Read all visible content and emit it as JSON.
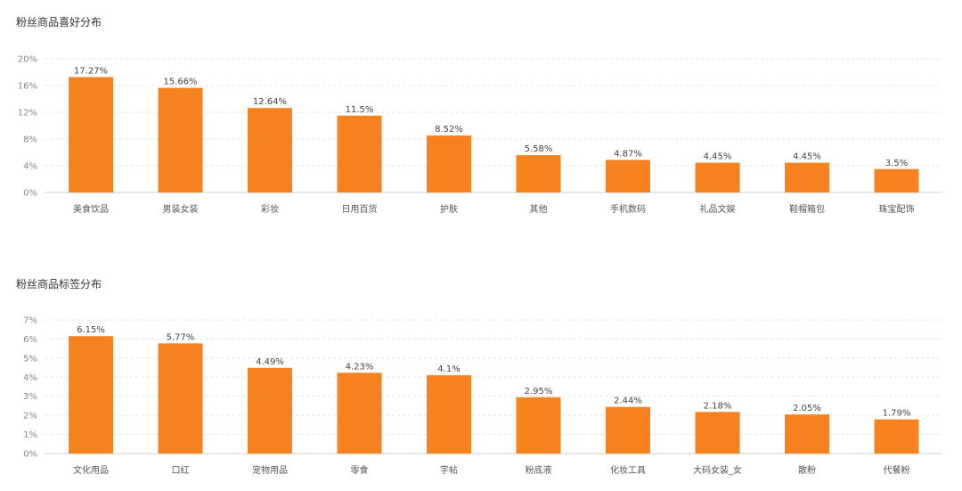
{
  "colors": {
    "bar": "#f5821f"
  },
  "chart_data": [
    {
      "type": "bar",
      "title": "粉丝商品喜好分布",
      "categories": [
        "美食饮品",
        "男装女装",
        "彩妆",
        "日用百货",
        "护肤",
        "其他",
        "手机数码",
        "礼品文娱",
        "鞋帽箱包",
        "珠宝配饰"
      ],
      "values": [
        17.27,
        15.66,
        12.64,
        11.5,
        8.52,
        5.58,
        4.87,
        4.45,
        4.45,
        3.5
      ],
      "value_labels": [
        "17.27%",
        "15.66%",
        "12.64%",
        "11.5%",
        "8.52%",
        "5.58%",
        "4.87%",
        "4.45%",
        "4.45%",
        "3.5%"
      ],
      "ylim": [
        0,
        20
      ],
      "yticks": [
        "0%",
        "4%",
        "8%",
        "12%",
        "16%",
        "20%"
      ],
      "grid": true
    },
    {
      "type": "bar",
      "title": "粉丝商品标签分布",
      "categories": [
        "文化用品",
        "口红",
        "宠物用品",
        "零食",
        "字帖",
        "粉底液",
        "化妆工具",
        "大码女装_女",
        "散粉",
        "代餐粉"
      ],
      "values": [
        6.15,
        5.77,
        4.49,
        4.23,
        4.1,
        2.95,
        2.44,
        2.18,
        2.05,
        1.79
      ],
      "value_labels": [
        "6.15%",
        "5.77%",
        "4.49%",
        "4.23%",
        "4.1%",
        "2.95%",
        "2.44%",
        "2.18%",
        "2.05%",
        "1.79%"
      ],
      "ylim": [
        0,
        7
      ],
      "yticks": [
        "0%",
        "1%",
        "2%",
        "3%",
        "4%",
        "5%",
        "6%",
        "7%"
      ],
      "grid": true
    }
  ]
}
